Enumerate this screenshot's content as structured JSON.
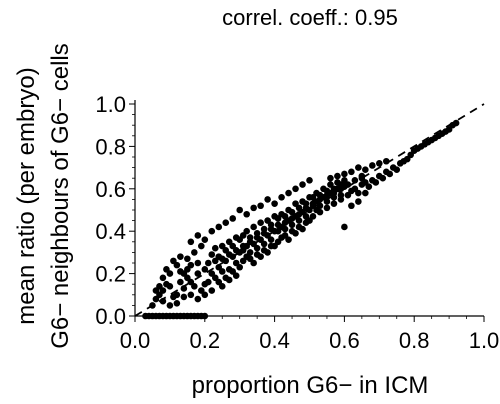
{
  "chart_data": {
    "type": "scatter",
    "title": "correl. coeff.: 0.95",
    "xlabel": "proportion G6− in ICM",
    "ylabel_line1": "mean ratio (per embryo)",
    "ylabel_line2": "G6− neighbours of G6− cells",
    "xlim": [
      0.0,
      1.0
    ],
    "ylim": [
      0.0,
      1.0
    ],
    "x_ticks": [
      "0.0",
      "0.2",
      "0.4",
      "0.6",
      "0.8",
      "1.0"
    ],
    "y_ticks": [
      "0.0",
      "0.2",
      "0.4",
      "0.6",
      "0.8",
      "1.0"
    ],
    "grid": false,
    "reference_line": {
      "style": "dashed",
      "from": [
        0.0,
        0.0
      ],
      "to": [
        1.0,
        1.0
      ]
    },
    "points_color": "#000000",
    "points": [
      [
        0.03,
        0.0
      ],
      [
        0.05,
        0.0
      ],
      [
        0.07,
        0.0
      ],
      [
        0.09,
        0.0
      ],
      [
        0.11,
        0.0
      ],
      [
        0.13,
        0.0
      ],
      [
        0.15,
        0.0
      ],
      [
        0.17,
        0.0
      ],
      [
        0.19,
        0.0
      ],
      [
        0.2,
        0.0
      ],
      [
        0.04,
        0.0
      ],
      [
        0.06,
        0.0
      ],
      [
        0.08,
        0.0
      ],
      [
        0.1,
        0.0
      ],
      [
        0.12,
        0.0
      ],
      [
        0.14,
        0.0
      ],
      [
        0.16,
        0.0
      ],
      [
        0.18,
        0.0
      ],
      [
        0.05,
        0.05
      ],
      [
        0.06,
        0.08
      ],
      [
        0.07,
        0.1
      ],
      [
        0.08,
        0.12
      ],
      [
        0.09,
        0.15
      ],
      [
        0.1,
        0.2
      ],
      [
        0.12,
        0.1
      ],
      [
        0.13,
        0.16
      ],
      [
        0.14,
        0.13
      ],
      [
        0.15,
        0.18
      ],
      [
        0.1,
        0.05
      ],
      [
        0.11,
        0.09
      ],
      [
        0.12,
        0.06
      ],
      [
        0.14,
        0.09
      ],
      [
        0.16,
        0.1
      ],
      [
        0.17,
        0.14
      ],
      [
        0.18,
        0.2
      ],
      [
        0.19,
        0.12
      ],
      [
        0.2,
        0.15
      ],
      [
        0.2,
        0.22
      ],
      [
        0.08,
        0.18
      ],
      [
        0.07,
        0.14
      ],
      [
        0.09,
        0.22
      ],
      [
        0.11,
        0.26
      ],
      [
        0.13,
        0.21
      ],
      [
        0.15,
        0.27
      ],
      [
        0.16,
        0.24
      ],
      [
        0.17,
        0.3
      ],
      [
        0.18,
        0.25
      ],
      [
        0.19,
        0.33
      ],
      [
        0.21,
        0.16
      ],
      [
        0.22,
        0.2
      ],
      [
        0.23,
        0.18
      ],
      [
        0.24,
        0.23
      ],
      [
        0.25,
        0.21
      ],
      [
        0.26,
        0.26
      ],
      [
        0.27,
        0.22
      ],
      [
        0.28,
        0.28
      ],
      [
        0.29,
        0.25
      ],
      [
        0.3,
        0.3
      ],
      [
        0.21,
        0.25
      ],
      [
        0.22,
        0.29
      ],
      [
        0.23,
        0.32
      ],
      [
        0.24,
        0.28
      ],
      [
        0.25,
        0.33
      ],
      [
        0.26,
        0.31
      ],
      [
        0.27,
        0.35
      ],
      [
        0.28,
        0.33
      ],
      [
        0.29,
        0.37
      ],
      [
        0.3,
        0.36
      ],
      [
        0.22,
        0.12
      ],
      [
        0.24,
        0.16
      ],
      [
        0.26,
        0.18
      ],
      [
        0.28,
        0.21
      ],
      [
        0.3,
        0.23
      ],
      [
        0.25,
        0.14
      ],
      [
        0.27,
        0.17
      ],
      [
        0.29,
        0.19
      ],
      [
        0.31,
        0.26
      ],
      [
        0.32,
        0.28
      ],
      [
        0.31,
        0.31
      ],
      [
        0.32,
        0.33
      ],
      [
        0.33,
        0.3
      ],
      [
        0.34,
        0.34
      ],
      [
        0.35,
        0.32
      ],
      [
        0.36,
        0.36
      ],
      [
        0.37,
        0.34
      ],
      [
        0.38,
        0.38
      ],
      [
        0.39,
        0.36
      ],
      [
        0.4,
        0.4
      ],
      [
        0.31,
        0.38
      ],
      [
        0.32,
        0.4
      ],
      [
        0.33,
        0.37
      ],
      [
        0.34,
        0.42
      ],
      [
        0.35,
        0.39
      ],
      [
        0.36,
        0.44
      ],
      [
        0.37,
        0.41
      ],
      [
        0.38,
        0.45
      ],
      [
        0.39,
        0.43
      ],
      [
        0.4,
        0.47
      ],
      [
        0.33,
        0.27
      ],
      [
        0.35,
        0.29
      ],
      [
        0.37,
        0.31
      ],
      [
        0.39,
        0.33
      ],
      [
        0.41,
        0.35
      ],
      [
        0.36,
        0.28
      ],
      [
        0.38,
        0.3
      ],
      [
        0.4,
        0.33
      ],
      [
        0.42,
        0.37
      ],
      [
        0.34,
        0.25
      ],
      [
        0.41,
        0.4
      ],
      [
        0.42,
        0.42
      ],
      [
        0.43,
        0.41
      ],
      [
        0.44,
        0.45
      ],
      [
        0.45,
        0.43
      ],
      [
        0.46,
        0.47
      ],
      [
        0.47,
        0.45
      ],
      [
        0.48,
        0.49
      ],
      [
        0.49,
        0.47
      ],
      [
        0.5,
        0.5
      ],
      [
        0.41,
        0.46
      ],
      [
        0.42,
        0.48
      ],
      [
        0.43,
        0.47
      ],
      [
        0.44,
        0.5
      ],
      [
        0.45,
        0.49
      ],
      [
        0.46,
        0.53
      ],
      [
        0.47,
        0.51
      ],
      [
        0.48,
        0.54
      ],
      [
        0.49,
        0.53
      ],
      [
        0.5,
        0.56
      ],
      [
        0.43,
        0.38
      ],
      [
        0.45,
        0.4
      ],
      [
        0.47,
        0.42
      ],
      [
        0.49,
        0.44
      ],
      [
        0.51,
        0.47
      ],
      [
        0.44,
        0.36
      ],
      [
        0.46,
        0.39
      ],
      [
        0.48,
        0.41
      ],
      [
        0.5,
        0.45
      ],
      [
        0.52,
        0.5
      ],
      [
        0.51,
        0.52
      ],
      [
        0.52,
        0.54
      ],
      [
        0.53,
        0.52
      ],
      [
        0.54,
        0.56
      ],
      [
        0.55,
        0.54
      ],
      [
        0.56,
        0.58
      ],
      [
        0.57,
        0.56
      ],
      [
        0.58,
        0.6
      ],
      [
        0.59,
        0.57
      ],
      [
        0.6,
        0.61
      ],
      [
        0.51,
        0.56
      ],
      [
        0.52,
        0.58
      ],
      [
        0.53,
        0.57
      ],
      [
        0.54,
        0.6
      ],
      [
        0.55,
        0.59
      ],
      [
        0.56,
        0.62
      ],
      [
        0.57,
        0.6
      ],
      [
        0.58,
        0.63
      ],
      [
        0.59,
        0.62
      ],
      [
        0.6,
        0.64
      ],
      [
        0.53,
        0.49
      ],
      [
        0.55,
        0.51
      ],
      [
        0.57,
        0.53
      ],
      [
        0.59,
        0.55
      ],
      [
        0.61,
        0.57
      ],
      [
        0.62,
        0.59
      ],
      [
        0.63,
        0.6
      ],
      [
        0.64,
        0.58
      ],
      [
        0.65,
        0.62
      ],
      [
        0.66,
        0.63
      ],
      [
        0.6,
        0.42
      ],
      [
        0.62,
        0.52
      ],
      [
        0.64,
        0.54
      ],
      [
        0.66,
        0.58
      ],
      [
        0.68,
        0.64
      ],
      [
        0.7,
        0.66
      ],
      [
        0.72,
        0.68
      ],
      [
        0.74,
        0.7
      ],
      [
        0.76,
        0.72
      ],
      [
        0.78,
        0.74
      ],
      [
        0.67,
        0.61
      ],
      [
        0.69,
        0.63
      ],
      [
        0.71,
        0.65
      ],
      [
        0.73,
        0.67
      ],
      [
        0.75,
        0.69
      ],
      [
        0.77,
        0.73
      ],
      [
        0.79,
        0.76
      ],
      [
        0.8,
        0.78
      ],
      [
        0.82,
        0.8
      ],
      [
        0.84,
        0.82
      ],
      [
        0.86,
        0.84
      ],
      [
        0.87,
        0.85
      ],
      [
        0.88,
        0.86
      ],
      [
        0.89,
        0.87
      ],
      [
        0.9,
        0.88
      ],
      [
        0.91,
        0.9
      ],
      [
        0.92,
        0.91
      ],
      [
        0.85,
        0.83
      ],
      [
        0.83,
        0.81
      ],
      [
        0.81,
        0.79
      ],
      [
        0.62,
        0.68
      ],
      [
        0.64,
        0.7
      ],
      [
        0.66,
        0.69
      ],
      [
        0.68,
        0.71
      ],
      [
        0.7,
        0.72
      ],
      [
        0.58,
        0.66
      ],
      [
        0.56,
        0.65
      ],
      [
        0.6,
        0.67
      ],
      [
        0.65,
        0.66
      ],
      [
        0.72,
        0.73
      ],
      [
        0.15,
        0.22
      ],
      [
        0.13,
        0.28
      ],
      [
        0.16,
        0.35
      ],
      [
        0.18,
        0.38
      ],
      [
        0.2,
        0.36
      ],
      [
        0.22,
        0.4
      ],
      [
        0.24,
        0.42
      ],
      [
        0.26,
        0.44
      ],
      [
        0.28,
        0.46
      ],
      [
        0.3,
        0.5
      ],
      [
        0.32,
        0.48
      ],
      [
        0.34,
        0.51
      ],
      [
        0.36,
        0.52
      ],
      [
        0.38,
        0.55
      ],
      [
        0.4,
        0.53
      ],
      [
        0.42,
        0.56
      ],
      [
        0.44,
        0.58
      ],
      [
        0.46,
        0.6
      ],
      [
        0.48,
        0.62
      ],
      [
        0.5,
        0.64
      ],
      [
        0.06,
        0.12
      ],
      [
        0.08,
        0.07
      ],
      [
        0.1,
        0.14
      ],
      [
        0.12,
        0.24
      ],
      [
        0.14,
        0.2
      ],
      [
        0.16,
        0.16
      ],
      [
        0.18,
        0.08
      ],
      [
        0.2,
        0.1
      ],
      [
        0.23,
        0.26
      ],
      [
        0.25,
        0.27
      ],
      [
        0.27,
        0.29
      ],
      [
        0.29,
        0.31
      ],
      [
        0.31,
        0.33
      ],
      [
        0.33,
        0.35
      ],
      [
        0.35,
        0.37
      ],
      [
        0.37,
        0.39
      ],
      [
        0.39,
        0.41
      ],
      [
        0.41,
        0.43
      ],
      [
        0.43,
        0.44
      ],
      [
        0.45,
        0.46
      ],
      [
        0.47,
        0.48
      ],
      [
        0.49,
        0.51
      ],
      [
        0.51,
        0.53
      ],
      [
        0.53,
        0.55
      ],
      [
        0.55,
        0.57
      ],
      [
        0.57,
        0.58
      ],
      [
        0.59,
        0.6
      ],
      [
        0.61,
        0.62
      ],
      [
        0.63,
        0.64
      ],
      [
        0.65,
        0.65
      ]
    ]
  }
}
